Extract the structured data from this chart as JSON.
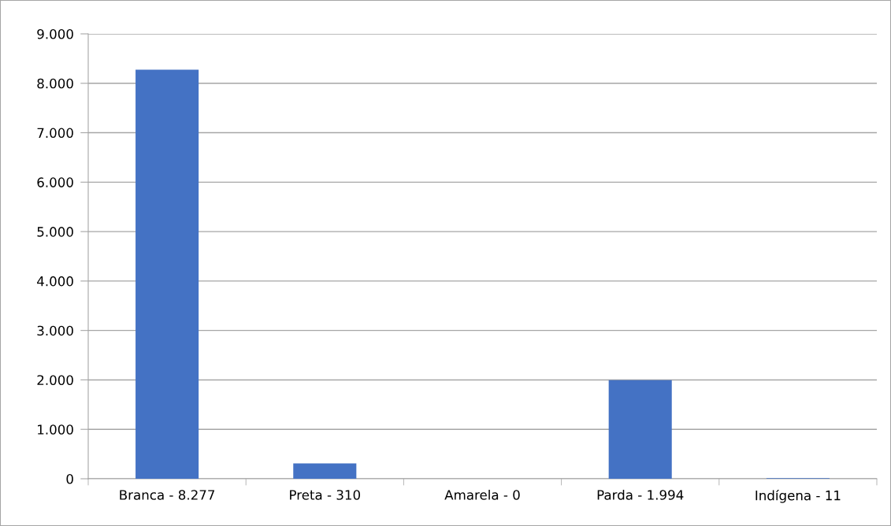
{
  "chart_data": {
    "type": "bar",
    "categories": [
      "Branca - 8.277",
      "Preta - 310",
      "Amarela - 0",
      "Parda - 1.994",
      "Indígena - 11"
    ],
    "values": [
      8277,
      310,
      0,
      1994,
      11
    ],
    "color": "#4472c4",
    "ylim": [
      0,
      9000
    ],
    "yticks": [
      0,
      {
        "value": 1000,
        "label": "1.000"
      },
      {
        "value": 2000,
        "label": "2.000"
      },
      {
        "value": 3000,
        "label": "3.000"
      },
      {
        "value": 4000,
        "label": "4.000"
      },
      {
        "value": 5000,
        "label": "5.000"
      },
      {
        "value": 6000,
        "label": "6.000"
      },
      {
        "value": 7000,
        "label": "7.000"
      },
      {
        "value": 8000,
        "label": "8.000"
      },
      {
        "value": 9000,
        "label": "9.000"
      }
    ],
    "grid": "y",
    "legend": false
  }
}
